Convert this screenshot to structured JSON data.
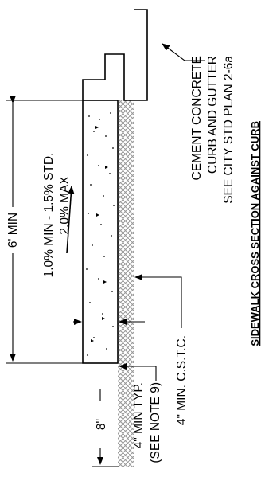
{
  "drawing_title": "SIDEWALK CROSS SECTION AGAINST CURB",
  "dimensions": {
    "width": "6' MIN",
    "depth": "8\""
  },
  "slope_note": {
    "line1": "1.0% MIN - 1.5% STD.",
    "line2": "2.0% MAX"
  },
  "curb_note": {
    "line1": "CEMENT CONCRETE",
    "line2": "CURB AND GUTTER",
    "line3": "SEE CITY STD PLAN 2-6a"
  },
  "cstc_note": "4\" MIN. C.S.T.C.",
  "thickness_note": {
    "line1": "4\" MIN TYP.",
    "line2": "(SEE NOTE 9)"
  },
  "colors": {
    "line": "#000000",
    "hatch": "#a8a8a8",
    "background": "#ffffff"
  }
}
